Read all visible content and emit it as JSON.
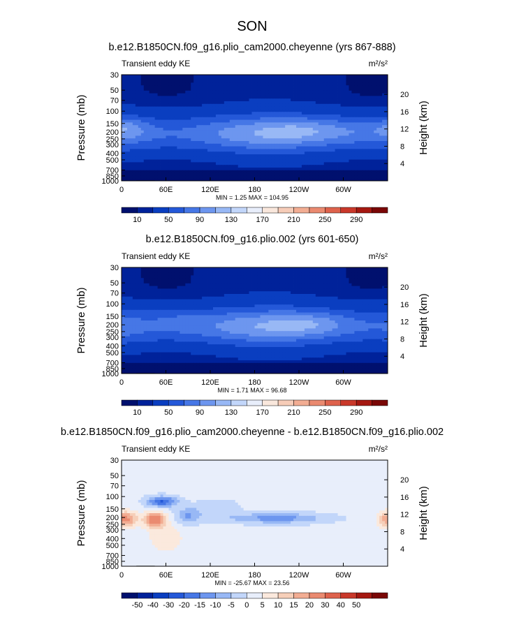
{
  "page": {
    "season_title": "SON"
  },
  "colors": {
    "levels_abs": [
      "#00106e",
      "#00229a",
      "#0a3ec0",
      "#2458d8",
      "#4677e6",
      "#6d96ef",
      "#98b8f5",
      "#c2d6fa",
      "#e8eefb",
      "#f9e7dc",
      "#f6ccb8",
      "#f2ad93",
      "#ea8a70",
      "#de624c",
      "#c9382a",
      "#a51811",
      "#7a0706"
    ],
    "levels_diff": [
      "#00106e",
      "#00229a",
      "#0a3ec0",
      "#2458d8",
      "#4677e6",
      "#6d96ef",
      "#98b8f5",
      "#c2d6fa",
      "#e8eefb",
      "#fbe9dd",
      "#f6cfb9",
      "#f2ad93",
      "#ea8a70",
      "#de624c",
      "#c9382a",
      "#a51811",
      "#7a0706"
    ],
    "topo": "#000000"
  },
  "chart_data": [
    {
      "type": "heatmap",
      "title": "b.e12.B1850CN.f09_g16.plio_cam2000.cheyenne (yrs 867-888)",
      "left_label": "Transient eddy KE",
      "units": "m²/s²",
      "ylabel": "Pressure (mb)",
      "ylabel_right": "Height (km)",
      "yticks": [
        "30",
        "50",
        "70",
        "100",
        "150",
        "200",
        "250",
        "300",
        "400",
        "500",
        "700",
        "850",
        "1000"
      ],
      "yticks_right": [
        "20",
        "16",
        "12",
        "8",
        "4"
      ],
      "xticks": [
        "0",
        "60E",
        "120E",
        "180",
        "120W",
        "60W"
      ],
      "stats": "MIN =   1.25   MAX = 104.95",
      "min": 1.25,
      "max": 104.95,
      "colorbar": {
        "labels": [
          "10",
          "50",
          "90",
          "130",
          "170",
          "210",
          "250",
          "290"
        ]
      }
    },
    {
      "type": "heatmap",
      "title": "b.e12.B1850CN.f09_g16.plio.002 (yrs 601-650)",
      "left_label": "Transient eddy KE",
      "units": "m²/s²",
      "ylabel": "Pressure (mb)",
      "ylabel_right": "Height (km)",
      "yticks": [
        "30",
        "50",
        "70",
        "100",
        "150",
        "200",
        "250",
        "300",
        "400",
        "500",
        "700",
        "850",
        "1000"
      ],
      "yticks_right": [
        "20",
        "16",
        "12",
        "8",
        "4"
      ],
      "xticks": [
        "0",
        "60E",
        "120E",
        "180",
        "120W",
        "60W"
      ],
      "stats": "MIN =   1.71   MAX =  96.68",
      "min": 1.71,
      "max": 96.68,
      "colorbar": {
        "labels": [
          "10",
          "50",
          "90",
          "130",
          "170",
          "210",
          "250",
          "290"
        ]
      }
    },
    {
      "type": "heatmap",
      "title": "b.e12.B1850CN.f09_g16.plio_cam2000.cheyenne - b.e12.B1850CN.f09_g16.plio.002",
      "left_label": "Transient eddy KE",
      "units": "m²/s²",
      "ylabel": "Pressure (mb)",
      "ylabel_right": "Height (km)",
      "yticks": [
        "30",
        "50",
        "70",
        "100",
        "150",
        "200",
        "250",
        "300",
        "400",
        "500",
        "700",
        "850",
        "1000"
      ],
      "yticks_right": [
        "20",
        "16",
        "12",
        "8",
        "4"
      ],
      "xticks": [
        "0",
        "60E",
        "120E",
        "180",
        "120W",
        "60W"
      ],
      "stats": "MIN = -25.67   MAX =  23.56",
      "min": -25.67,
      "max": 23.56,
      "colorbar": {
        "labels": [
          "-50",
          "-40",
          "-30",
          "-20",
          "-15",
          "-10",
          "-5",
          "0",
          "5",
          "10",
          "15",
          "20",
          "30",
          "40",
          "50"
        ]
      }
    }
  ]
}
